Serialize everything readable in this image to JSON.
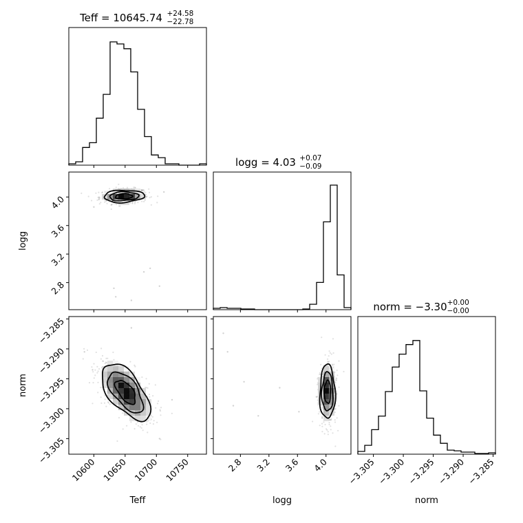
{
  "chart_data": {
    "type": "corner",
    "parameters": [
      {
        "name": "Teff",
        "label": "Teff",
        "range": [
          10560,
          10780
        ],
        "ticks": [
          10600,
          10650,
          10700,
          10750
        ],
        "tick_labels": [
          "10600",
          "10650",
          "10700",
          "10750"
        ],
        "title_main": "Teff = 10645.74",
        "title_sup": "+24.58",
        "title_sub": "−22.78"
      },
      {
        "name": "logg",
        "label": "logg",
        "range": [
          2.42,
          4.35
        ],
        "ticks": [
          2.8,
          3.2,
          3.6,
          4.0
        ],
        "tick_labels": [
          "2.8",
          "3.2",
          "3.6",
          "4.0"
        ],
        "title_main": "logg = 4.03",
        "title_sup": "+0.07",
        "title_sub": "−0.09"
      },
      {
        "name": "norm",
        "label": "norm",
        "range": [
          -3.3076,
          -3.2846
        ],
        "ticks": [
          -3.305,
          -3.3,
          -3.295,
          -3.29,
          -3.285
        ],
        "tick_labels": [
          "−3.305",
          "−3.300",
          "−3.295",
          "−3.290",
          "−3.285"
        ],
        "title_main": "norm = −3.30",
        "title_sup": "+0.00",
        "title_sub": "−0.00"
      }
    ],
    "histograms": [
      {
        "param": "Teff",
        "edges": [
          10560,
          10571,
          10582,
          10593,
          10604,
          10615,
          10626,
          10637,
          10648,
          10659,
          10670,
          10681,
          10692,
          10703,
          10714,
          10725,
          10736,
          10747,
          10758,
          10769,
          10780
        ],
        "counts": [
          0.01,
          0.025,
          0.13,
          0.165,
          0.345,
          0.52,
          0.905,
          0.89,
          0.855,
          0.685,
          0.41,
          0.21,
          0.075,
          0.055,
          0.01,
          0.01,
          0,
          0,
          0,
          0.01
        ]
      },
      {
        "param": "logg",
        "edges": [
          2.42,
          2.5165,
          2.613,
          2.7095,
          2.806,
          2.9025,
          2.999,
          3.0955,
          3.192,
          3.2885,
          3.385,
          3.4815,
          3.578,
          3.6745,
          3.771,
          3.8675,
          3.964,
          4.0605,
          4.157,
          4.2535,
          4.35
        ],
        "counts": [
          0.01,
          0.015,
          0.01,
          0.01,
          0.005,
          0.005,
          0,
          0,
          0,
          0,
          0,
          0,
          0,
          0.005,
          0.04,
          0.2,
          0.645,
          0.915,
          0.255,
          0.015
        ]
      },
      {
        "param": "norm",
        "edges": [
          -3.3076,
          -3.30645,
          -3.3053,
          -3.30415,
          -3.303,
          -3.30185,
          -3.3007,
          -3.29955,
          -3.2984,
          -3.29725,
          -3.2961,
          -3.29495,
          -3.2938,
          -3.29265,
          -3.2915,
          -3.29035,
          -3.2892,
          -3.28805,
          -3.2869,
          -3.28575,
          -3.2846
        ],
        "counts": [
          0.02,
          0.065,
          0.18,
          0.28,
          0.46,
          0.64,
          0.735,
          0.805,
          0.835,
          0.465,
          0.265,
          0.14,
          0.08,
          0.03,
          0.025,
          0.015,
          0.015,
          0.005,
          0.005,
          0.01
        ]
      }
    ],
    "joint": [
      {
        "x": "Teff",
        "y": "logg",
        "center": [
          10648,
          4.01
        ],
        "sigma": [
          15,
          0.04
        ],
        "rho": 0.1,
        "outliers": [
          [
            10635,
            2.6
          ],
          [
            10660,
            2.55
          ],
          [
            10680,
            2.95
          ],
          [
            10705,
            2.75
          ],
          [
            10632,
            2.72
          ],
          [
            10690,
            3.0
          ],
          [
            10712,
            4.07
          ],
          [
            10600,
            3.86
          ]
        ]
      },
      {
        "x": "Teff",
        "y": "norm",
        "center": [
          10651,
          -3.2972
        ],
        "sigma": [
          18,
          0.0022
        ],
        "rho": -0.6,
        "outliers": [
          [
            10612,
            -3.2845
          ],
          [
            10660,
            -3.2865
          ],
          [
            10585,
            -3.2905
          ],
          [
            10598,
            -3.2935
          ],
          [
            10705,
            -3.305
          ],
          [
            10725,
            -3.2985
          ]
        ]
      },
      {
        "x": "logg",
        "y": "norm",
        "center": [
          4.02,
          -3.2972
        ],
        "sigma": [
          0.05,
          0.0021
        ],
        "rho": 0.0,
        "outliers": [
          [
            2.56,
            -3.2874
          ],
          [
            2.62,
            -3.2905
          ],
          [
            2.85,
            -3.2955
          ],
          [
            3.05,
            -3.3012
          ],
          [
            3.35,
            -3.2965
          ],
          [
            3.62,
            -3.3005
          ],
          [
            2.7,
            -3.2995
          ]
        ]
      }
    ]
  }
}
